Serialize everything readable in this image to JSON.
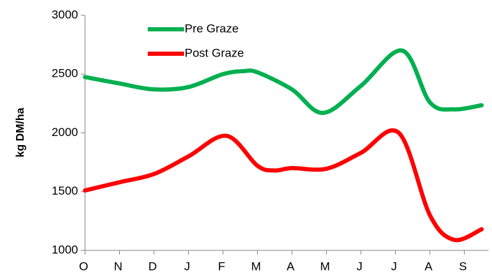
{
  "chart_data": {
    "type": "line",
    "y_label": "kg DM/ha",
    "xlim": [
      0,
      11.7
    ],
    "xticks": [
      {
        "value": 0,
        "label": "O"
      },
      {
        "value": 1,
        "label": "N"
      },
      {
        "value": 2,
        "label": "D"
      },
      {
        "value": 3,
        "label": "J"
      },
      {
        "value": 4,
        "label": "F"
      },
      {
        "value": 5,
        "label": "M"
      },
      {
        "value": 6,
        "label": "A"
      },
      {
        "value": 7,
        "label": "M"
      },
      {
        "value": 8,
        "label": "J"
      },
      {
        "value": 9,
        "label": "J"
      },
      {
        "value": 10,
        "label": "A"
      },
      {
        "value": 11,
        "label": "S"
      }
    ],
    "ylim": [
      1000,
      3000
    ],
    "yticks": [
      1000,
      1500,
      2000,
      2500,
      3000
    ],
    "grid": false,
    "legend": "top-left",
    "series": [
      {
        "name": "Pre Graze",
        "color": "#00b050",
        "x": [
          0,
          1,
          2,
          3,
          4,
          4.6,
          5,
          6,
          6.9,
          8,
          9.2,
          10,
          10.7,
          11.5
        ],
        "values": [
          2475,
          2420,
          2370,
          2390,
          2500,
          2525,
          2515,
          2370,
          2170,
          2400,
          2700,
          2260,
          2200,
          2235
        ]
      },
      {
        "name": "Post Graze",
        "color": "#ff0000",
        "x": [
          0,
          1,
          2,
          3,
          4.1,
          5,
          5.5,
          6,
          7,
          8,
          9.1,
          10,
          10.7,
          11.5
        ],
        "values": [
          1510,
          1580,
          1650,
          1800,
          1975,
          1720,
          1680,
          1700,
          1695,
          1830,
          2000,
          1300,
          1090,
          1180
        ]
      }
    ]
  }
}
